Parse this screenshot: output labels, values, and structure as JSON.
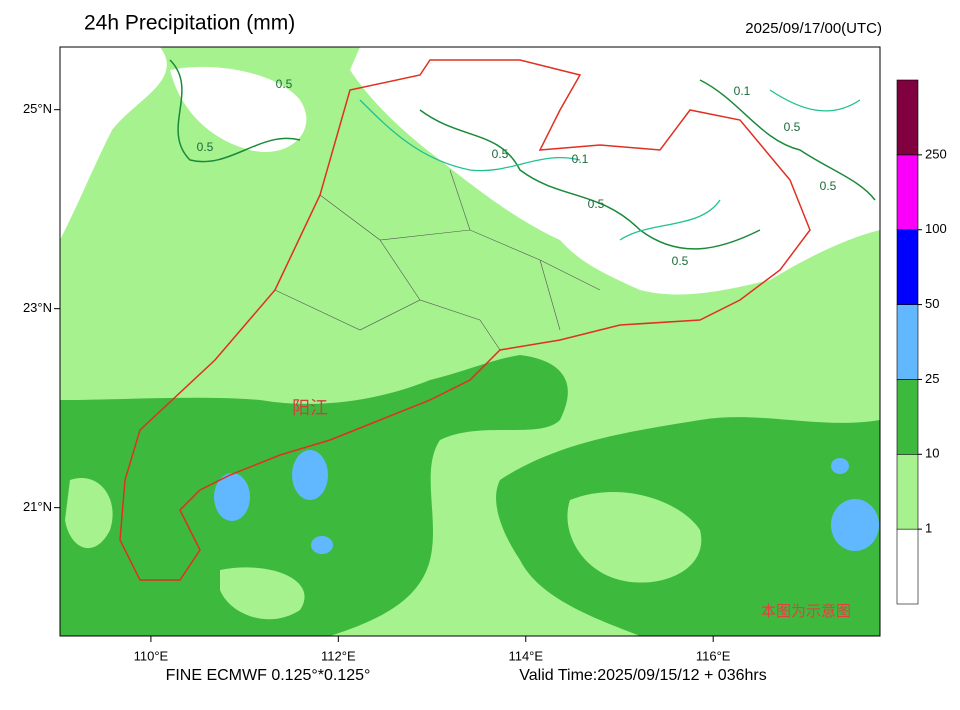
{
  "header": {
    "title": "24h Precipitation (mm)",
    "time": "2025/09/17/00(UTC)"
  },
  "map": {
    "xlim": [
      109.03,
      117.78
    ],
    "ylim": [
      19.71,
      25.63
    ],
    "xticks": [
      {
        "value": 110,
        "label": "110°E"
      },
      {
        "value": 112,
        "label": "112°E"
      },
      {
        "value": 114,
        "label": "114°E"
      },
      {
        "value": 116,
        "label": "116°E"
      }
    ],
    "yticks": [
      {
        "value": 21,
        "label": "21°N"
      },
      {
        "value": 23,
        "label": "23°N"
      },
      {
        "value": 25,
        "label": "25°N"
      }
    ],
    "contour_labels": [
      "0.5",
      "0.5",
      "0.5",
      "0.1",
      "0.5",
      "0.5",
      "0.5",
      "0.1",
      "0.5"
    ],
    "place_label": "阳江",
    "note": "本图为示意图"
  },
  "colorbar": {
    "levels": [
      1,
      10,
      25,
      50,
      100,
      250
    ],
    "colors": [
      "#ffffff",
      "#a6f28f",
      "#3dba3d",
      "#61b8ff",
      "#0000ff",
      "#fa00fa",
      "#800040"
    ]
  },
  "footer": {
    "model": "FINE ECMWF 0.125°*0.125°",
    "valid": "Valid Time:2025/09/15/12 + 036hrs"
  }
}
